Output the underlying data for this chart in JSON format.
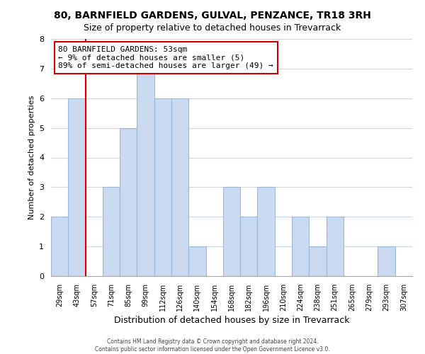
{
  "title": "80, BARNFIELD GARDENS, GULVAL, PENZANCE, TR18 3RH",
  "subtitle": "Size of property relative to detached houses in Trevarrack",
  "xlabel": "Distribution of detached houses by size in Trevarrack",
  "ylabel": "Number of detached properties",
  "bin_labels": [
    "29sqm",
    "43sqm",
    "57sqm",
    "71sqm",
    "85sqm",
    "99sqm",
    "112sqm",
    "126sqm",
    "140sqm",
    "154sqm",
    "168sqm",
    "182sqm",
    "196sqm",
    "210sqm",
    "224sqm",
    "238sqm",
    "251sqm",
    "265sqm",
    "279sqm",
    "293sqm",
    "307sqm"
  ],
  "bar_heights": [
    2,
    6,
    0,
    3,
    5,
    7,
    6,
    6,
    1,
    0,
    3,
    2,
    3,
    0,
    2,
    1,
    2,
    0,
    0,
    1,
    0
  ],
  "bar_color": "#c9d9f0",
  "bar_edge_color": "#a0b8d8",
  "ylim": [
    0,
    8
  ],
  "yticks": [
    0,
    1,
    2,
    3,
    4,
    5,
    6,
    7,
    8
  ],
  "property_line_color": "#cc0000",
  "annotation_title": "80 BARNFIELD GARDENS: 53sqm",
  "annotation_line1": "← 9% of detached houses are smaller (5)",
  "annotation_line2": "89% of semi-detached houses are larger (49) →",
  "annotation_box_color": "#ffffff",
  "annotation_box_edge": "#cc0000",
  "footer1": "Contains HM Land Registry data © Crown copyright and database right 2024.",
  "footer2": "Contains public sector information licensed under the Open Government Licence v3.0.",
  "background_color": "#ffffff",
  "grid_color": "#c8d8e8",
  "title_fontsize": 10,
  "subtitle_fontsize": 9
}
